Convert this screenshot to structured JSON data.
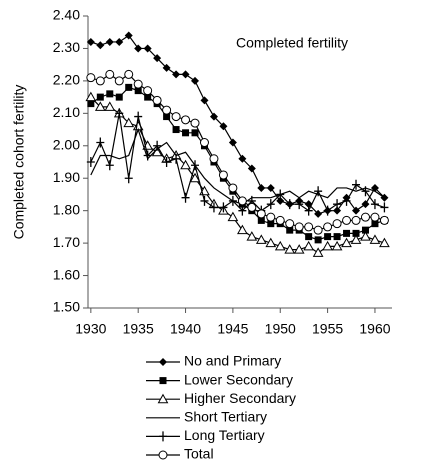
{
  "chart_data": {
    "type": "line",
    "annotation": "Completed fertility",
    "y_label": "Completed cohort fertility",
    "x": [
      1930,
      1931,
      1932,
      1933,
      1934,
      1935,
      1936,
      1937,
      1938,
      1939,
      1940,
      1941,
      1942,
      1943,
      1944,
      1945,
      1946,
      1947,
      1948,
      1949,
      1950,
      1951,
      1952,
      1953,
      1954,
      1955,
      1956,
      1957,
      1958,
      1959,
      1960,
      1961
    ],
    "series": [
      {
        "name": "No and Primary",
        "color": "#000000",
        "marker": "diamond",
        "values": [
          2.32,
          2.31,
          2.32,
          2.32,
          2.34,
          2.3,
          2.3,
          2.27,
          2.24,
          2.22,
          2.22,
          2.2,
          2.14,
          2.09,
          2.06,
          2.01,
          1.96,
          1.93,
          1.87,
          1.87,
          1.83,
          1.82,
          1.83,
          1.82,
          1.79,
          1.8,
          1.8,
          1.84,
          1.8,
          1.82,
          1.87,
          1.84
        ]
      },
      {
        "name": "Lower Secondary",
        "color": "#000000",
        "marker": "square",
        "values": [
          2.13,
          2.15,
          2.16,
          2.15,
          2.18,
          2.17,
          2.15,
          2.13,
          2.09,
          2.05,
          2.04,
          2.04,
          2.0,
          1.95,
          1.9,
          1.86,
          1.82,
          1.8,
          1.77,
          1.76,
          1.76,
          1.74,
          1.74,
          1.72,
          1.71,
          1.72,
          1.72,
          1.73,
          1.73,
          1.74,
          1.76,
          1.77
        ]
      },
      {
        "name": "Higher Secondary",
        "color": "#000000",
        "marker": "triangle",
        "values": [
          2.15,
          2.12,
          2.12,
          2.1,
          2.07,
          2.06,
          2.0,
          1.98,
          1.96,
          1.97,
          1.94,
          1.9,
          1.86,
          1.82,
          1.8,
          1.78,
          1.74,
          1.72,
          1.71,
          1.7,
          1.69,
          1.68,
          1.68,
          1.69,
          1.67,
          1.69,
          1.69,
          1.7,
          1.71,
          1.72,
          1.71,
          1.7
        ]
      },
      {
        "name": "Short Tertiary",
        "color": "#000000",
        "marker": "none",
        "values": [
          1.91,
          1.97,
          1.97,
          1.96,
          1.97,
          2.05,
          1.96,
          1.99,
          2.01,
          1.97,
          1.98,
          1.94,
          1.9,
          1.87,
          1.85,
          1.83,
          1.82,
          1.84,
          1.84,
          1.84,
          1.85,
          1.86,
          1.84,
          1.86,
          1.85,
          1.84,
          1.87,
          1.87,
          1.86,
          1.87,
          1.86,
          1.84
        ]
      },
      {
        "name": "Long Tertiary",
        "color": "#000000",
        "marker": "plus",
        "values": [
          1.95,
          2.01,
          1.94,
          2.1,
          1.9,
          2.09,
          1.97,
          2.0,
          1.95,
          1.96,
          1.84,
          1.94,
          1.83,
          1.81,
          1.81,
          1.83,
          1.8,
          1.83,
          1.8,
          1.82,
          1.85,
          1.82,
          1.82,
          1.8,
          1.86,
          1.8,
          1.82,
          1.83,
          1.88,
          1.86,
          1.82,
          1.81
        ]
      },
      {
        "name": "Total",
        "color": "#000000",
        "marker": "circle",
        "values": [
          2.21,
          2.2,
          2.22,
          2.2,
          2.22,
          2.19,
          2.17,
          2.14,
          2.11,
          2.09,
          2.08,
          2.07,
          2.01,
          1.96,
          1.91,
          1.87,
          1.83,
          1.81,
          1.79,
          1.78,
          1.77,
          1.76,
          1.75,
          1.75,
          1.74,
          1.75,
          1.76,
          1.77,
          1.77,
          1.78,
          1.78,
          1.77
        ]
      }
    ],
    "xlim": [
      1929.7,
      1961.8
    ],
    "xticks": [
      1930,
      1935,
      1940,
      1945,
      1950,
      1955,
      1960
    ],
    "ylim": [
      1.5,
      2.4
    ],
    "yticks": [
      {
        "value": 1.5,
        "label": "1.50"
      },
      {
        "value": 1.6,
        "label": "1.60"
      },
      {
        "value": 1.7,
        "label": "1.70"
      },
      {
        "value": 1.8,
        "label": "1.80"
      },
      {
        "value": 1.9,
        "label": "1.90"
      },
      {
        "value": 2.0,
        "label": "2.00"
      },
      {
        "value": 2.1,
        "label": "2.10"
      },
      {
        "value": 2.2,
        "label": "2.20"
      },
      {
        "value": 2.3,
        "label": "2.30"
      },
      {
        "value": 2.4,
        "label": "2.40"
      }
    ],
    "grid": false,
    "legend": "bottom"
  }
}
